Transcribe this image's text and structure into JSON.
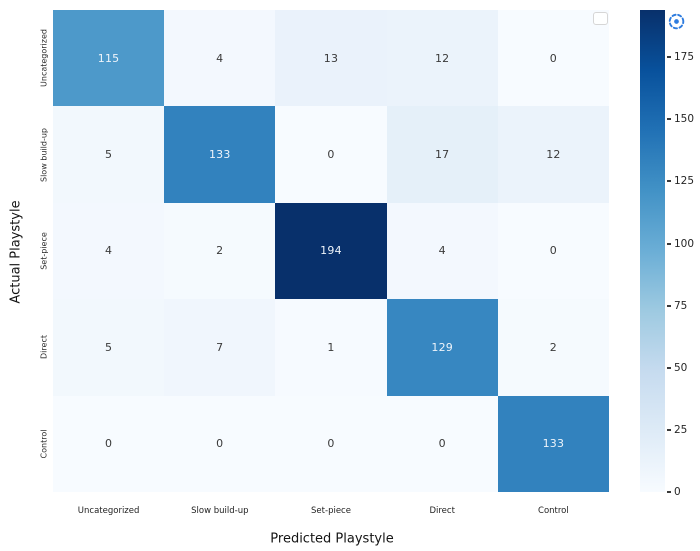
{
  "figure": {
    "background": "#ffffff"
  },
  "chart_data": {
    "type": "heatmap",
    "title": "",
    "xlabel": "Predicted Playstyle",
    "ylabel": "Actual Playstyle",
    "x_categories": [
      "Uncategorized",
      "Slow build-up",
      "Set-piece",
      "Direct",
      "Control"
    ],
    "y_categories": [
      "Uncategorized",
      "Slow build-up",
      "Set-piece",
      "Direct",
      "Control"
    ],
    "matrix": [
      [
        115,
        4,
        13,
        12,
        0
      ],
      [
        5,
        133,
        0,
        17,
        12
      ],
      [
        4,
        2,
        194,
        4,
        0
      ],
      [
        5,
        7,
        1,
        129,
        2
      ],
      [
        0,
        0,
        0,
        0,
        133
      ]
    ],
    "vmin": 0,
    "vmax": 194,
    "colormap_name": "Blues",
    "colormap_stops": [
      "#f7fbff",
      "#deebf7",
      "#c6dbef",
      "#9ecae1",
      "#6baed6",
      "#4292c6",
      "#2171b5",
      "#08519c",
      "#08306b"
    ],
    "colorbar_ticks": [
      0,
      25,
      50,
      75,
      100,
      125,
      150,
      175
    ],
    "legend": {
      "visible": true,
      "entries": []
    },
    "grid": false,
    "legend_position": "upper-right-empty-box"
  },
  "icons": {
    "loading_icon": "dashed-circle-with-dot",
    "loading_icon_color": "#2e7cdf"
  },
  "colors": {
    "cell_text_dark": "#3a3a3a",
    "cell_text_light": "#eef4fa",
    "tick_label": "#262626",
    "axis_title": "#141414",
    "tick_mark": "#3a3a3a",
    "legend_border": "#d6d6d6"
  }
}
